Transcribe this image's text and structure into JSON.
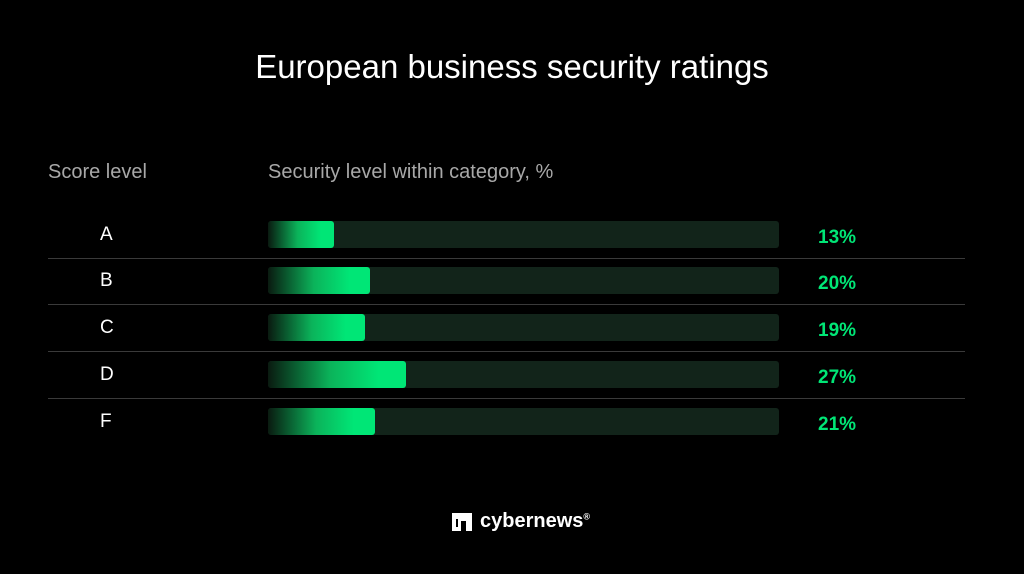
{
  "chart_data": {
    "type": "bar",
    "orientation": "horizontal",
    "title": "European business security ratings",
    "category_header": "Score level",
    "value_header": "Security level within category, %",
    "categories": [
      "A",
      "B",
      "C",
      "D",
      "F"
    ],
    "values": [
      13,
      20,
      19,
      27,
      21
    ],
    "value_labels": [
      "13%",
      "20%",
      "19%",
      "27%",
      "21%"
    ],
    "xlim": [
      0,
      100
    ],
    "colors": {
      "bar": "#00e676",
      "track": "#12241a",
      "background": "#000000",
      "label": "#00e676"
    }
  },
  "brand": {
    "name": "cybernews",
    "mark": "®"
  }
}
